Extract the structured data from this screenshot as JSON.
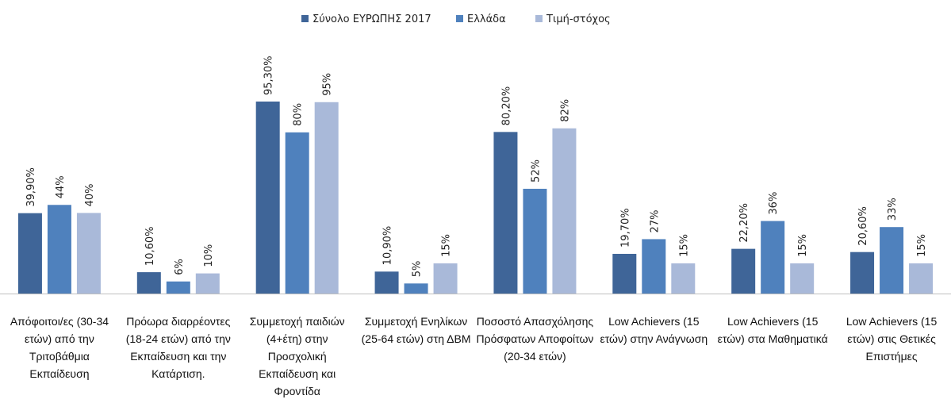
{
  "chart_data": {
    "type": "bar",
    "categories": [
      "Απόφοιτοι/ες (30-34 ετών) από την Τριτοβάθμια Εκπαίδευση",
      "Πρόωρα διαρρέοντες (18-24 ετών) από την Εκπαίδευση και την Κατάρτιση.",
      "Συμμετοχή παιδιών (4+έτη) στην Προσχολική Εκπαίδευση και Φροντίδα",
      "Συμμετοχή Ενηλίκων (25-64 ετών) στη ΔΒΜ",
      "Ποσοστό Απασχόλησης Πρόσφατων Αποφοίτων (20-34 ετών)",
      "Low Achievers (15 ετών) στην Ανάγνωση",
      "Low Achievers (15 ετών) στα Μαθηματικά",
      "Low Achievers (15 ετών)  στις Θετικές Επιστήμες"
    ],
    "series": [
      {
        "name": "Σύνολο ΕΥΡΩΠΗΣ 2017",
        "color": "#3f6598",
        "values": [
          39.9,
          10.6,
          95.3,
          10.9,
          80.2,
          19.7,
          22.2,
          20.6
        ],
        "value_labels": [
          "39,90%",
          "10,60%",
          "95,30%",
          "10,90%",
          "80,20%",
          "19,70%",
          "22,20%",
          "20,60%"
        ]
      },
      {
        "name": "Ελλάδα",
        "color": "#4f81bd",
        "values": [
          44,
          6,
          80,
          5,
          52,
          27,
          36,
          33
        ],
        "value_labels": [
          "44%",
          "6%",
          "80%",
          "5%",
          "52%",
          "27%",
          "36%",
          "33%"
        ]
      },
      {
        "name": "Τιμή-στόχος",
        "color": "#a9b9d9",
        "values": [
          40,
          10,
          95,
          15,
          82,
          15,
          15,
          15
        ],
        "value_labels": [
          "40%",
          "10%",
          "95%",
          "15%",
          "82%",
          "15%",
          "15%",
          "15%"
        ]
      }
    ],
    "legend": "top"
  }
}
